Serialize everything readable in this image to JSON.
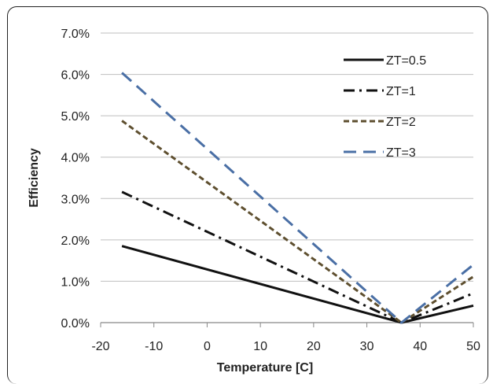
{
  "chart_data": {
    "type": "line",
    "title": "",
    "xlabel": "Temperature [C]",
    "ylabel": "Efficiency",
    "xlim": [
      -20,
      50
    ],
    "ylim": [
      0.0,
      0.07
    ],
    "x_ticks": [
      "-20",
      "-10",
      "0",
      "10",
      "20",
      "30",
      "40",
      "50"
    ],
    "y_ticks": [
      "0.0%",
      "1.0%",
      "2.0%",
      "3.0%",
      "4.0%",
      "5.0%",
      "6.0%",
      "7.0%"
    ],
    "grid": "horizontal",
    "legend_position": "top-right",
    "series": [
      {
        "name": "ZT=0.5",
        "color": "#111111",
        "dash": "solid",
        "points": [
          [
            -16,
            0.0185
          ],
          [
            36.5,
            0.0
          ],
          [
            50,
            0.0041
          ]
        ]
      },
      {
        "name": "ZT=1",
        "color": "#111111",
        "dash": "dashdot",
        "points": [
          [
            -16,
            0.0316
          ],
          [
            36.5,
            0.0
          ],
          [
            50,
            0.0071
          ]
        ]
      },
      {
        "name": "ZT=2",
        "color": "#5e4f2f",
        "dash": "dashed",
        "points": [
          [
            -16,
            0.0488
          ],
          [
            36.5,
            0.0
          ],
          [
            50,
            0.0111
          ]
        ]
      },
      {
        "name": "ZT=3",
        "color": "#4a6fa5",
        "dash": "longdash",
        "points": [
          [
            -16,
            0.0604
          ],
          [
            36.5,
            0.0
          ],
          [
            50,
            0.014
          ]
        ]
      }
    ]
  }
}
